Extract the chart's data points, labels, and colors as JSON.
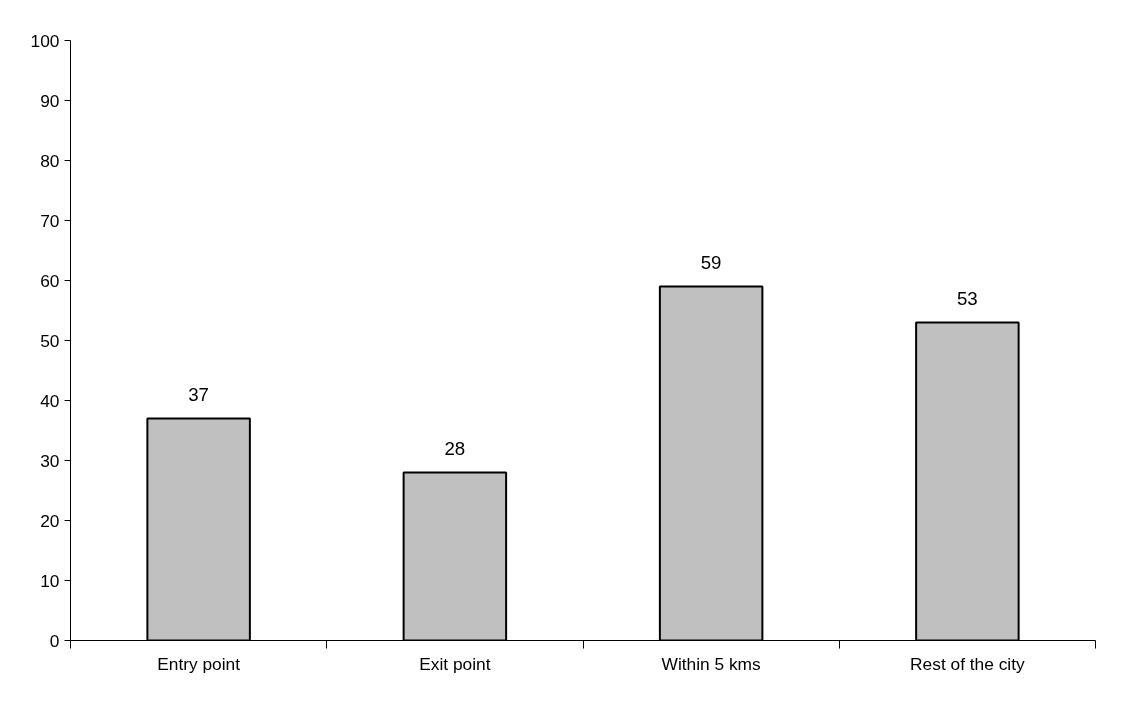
{
  "chart_data": {
    "type": "bar",
    "categories": [
      "Entry point",
      "Exit point",
      "Within 5 kms",
      "Rest of the city"
    ],
    "values": [
      37,
      28,
      59,
      53
    ],
    "color": "#c0c0c0",
    "ylim": [
      0,
      100
    ],
    "yticks": [
      0,
      10,
      20,
      30,
      40,
      50,
      60,
      70,
      80,
      90,
      100
    ],
    "data_labels": true,
    "grid": false
  }
}
